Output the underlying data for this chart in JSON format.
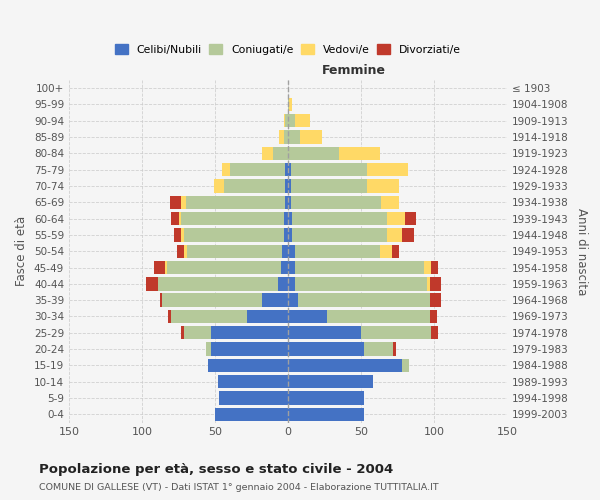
{
  "age_groups": [
    "0-4",
    "5-9",
    "10-14",
    "15-19",
    "20-24",
    "25-29",
    "30-34",
    "35-39",
    "40-44",
    "45-49",
    "50-54",
    "55-59",
    "60-64",
    "65-69",
    "70-74",
    "75-79",
    "80-84",
    "85-89",
    "90-94",
    "95-99",
    "100+"
  ],
  "birth_years": [
    "1999-2003",
    "1994-1998",
    "1989-1993",
    "1984-1988",
    "1979-1983",
    "1974-1978",
    "1969-1973",
    "1964-1968",
    "1959-1963",
    "1954-1958",
    "1949-1953",
    "1944-1948",
    "1939-1943",
    "1934-1938",
    "1929-1933",
    "1924-1928",
    "1919-1923",
    "1914-1918",
    "1909-1913",
    "1904-1908",
    "≤ 1903"
  ],
  "male": {
    "celibe": [
      50,
      47,
      48,
      55,
      53,
      53,
      28,
      18,
      7,
      5,
      4,
      3,
      3,
      2,
      2,
      2,
      0,
      0,
      0,
      0,
      0
    ],
    "coniugato": [
      0,
      0,
      0,
      0,
      3,
      18,
      52,
      68,
      82,
      78,
      65,
      68,
      70,
      68,
      42,
      38,
      10,
      3,
      2,
      0,
      0
    ],
    "vedovo": [
      0,
      0,
      0,
      0,
      0,
      0,
      0,
      0,
      0,
      1,
      2,
      2,
      2,
      3,
      7,
      5,
      8,
      3,
      1,
      0,
      0
    ],
    "divorziato": [
      0,
      0,
      0,
      0,
      0,
      2,
      2,
      2,
      8,
      8,
      5,
      5,
      5,
      8,
      0,
      0,
      0,
      0,
      0,
      0,
      0
    ]
  },
  "female": {
    "nubile": [
      52,
      52,
      58,
      78,
      52,
      50,
      27,
      7,
      5,
      5,
      5,
      3,
      3,
      2,
      2,
      2,
      0,
      0,
      0,
      0,
      0
    ],
    "coniugata": [
      0,
      0,
      0,
      5,
      20,
      48,
      70,
      90,
      90,
      88,
      58,
      65,
      65,
      62,
      52,
      52,
      35,
      8,
      5,
      1,
      0
    ],
    "vedova": [
      0,
      0,
      0,
      0,
      0,
      0,
      0,
      0,
      2,
      5,
      8,
      10,
      12,
      12,
      22,
      28,
      28,
      15,
      10,
      2,
      0
    ],
    "divorziata": [
      0,
      0,
      0,
      0,
      2,
      5,
      5,
      8,
      8,
      5,
      5,
      8,
      8,
      0,
      0,
      0,
      0,
      0,
      0,
      0,
      0
    ]
  },
  "colors": {
    "celibe": "#4472c4",
    "coniugato": "#b5c99a",
    "vedovo": "#ffd966",
    "divorziato": "#c0392b"
  },
  "title": "Popolazione per età, sesso e stato civile - 2004",
  "subtitle": "COMUNE DI GALLESE (VT) - Dati ISTAT 1° gennaio 2004 - Elaborazione TUTTITALIA.IT",
  "xlabel_right": "Femmine",
  "ylabel_left": "Fasce di età",
  "ylabel_right": "Anni di nascita",
  "xlim": 150,
  "bg_color": "#f5f5f5",
  "grid_color": "#cccccc"
}
